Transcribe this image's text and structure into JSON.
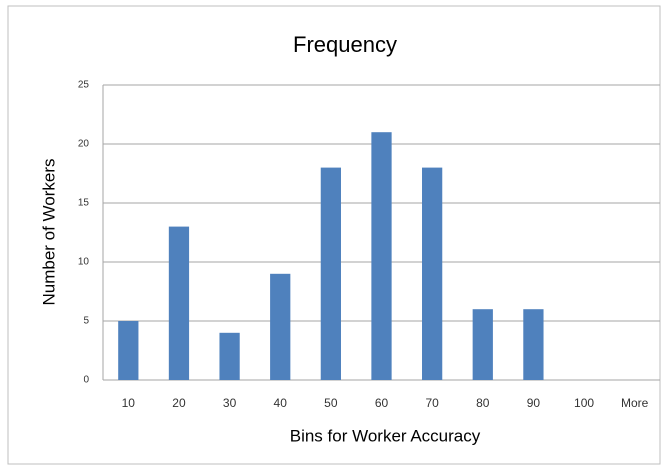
{
  "chart_data": {
    "type": "bar",
    "title": "Frequency",
    "x_label": "Bins for Worker Accuracy",
    "y_label": "Number of Workers",
    "categories": [
      "10",
      "20",
      "30",
      "40",
      "50",
      "60",
      "70",
      "80",
      "90",
      "100",
      "More"
    ],
    "values": [
      5,
      13,
      4,
      9,
      18,
      21,
      18,
      6,
      6,
      0,
      0
    ],
    "color": "#4f81bd",
    "ylim": [
      0,
      25
    ],
    "yticks": [
      0,
      5,
      10,
      15,
      20,
      25
    ],
    "grid": true
  }
}
